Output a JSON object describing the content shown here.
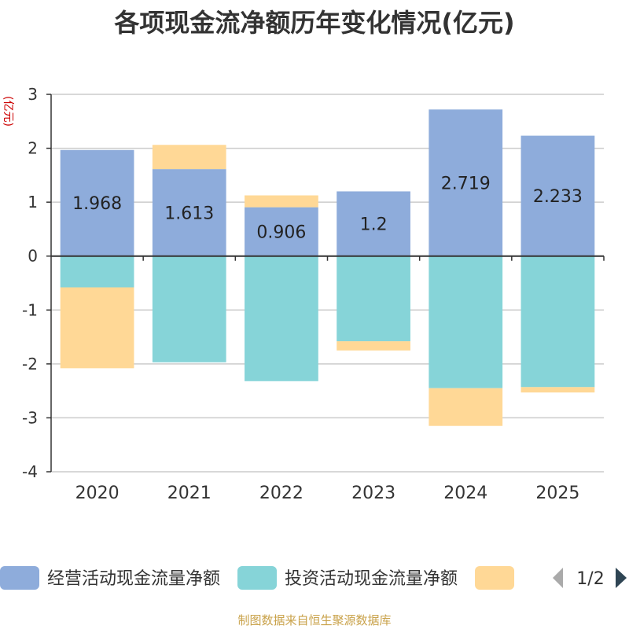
{
  "chart_data": {
    "type": "bar",
    "stacked": true,
    "title": "各项现金流净额历年变化情况(亿元)",
    "ylabel": "(亿元)",
    "xlabel": "",
    "ylim": [
      -4,
      3
    ],
    "yticks": [
      3,
      2,
      1,
      0,
      -1,
      -2,
      -3,
      -4
    ],
    "categories": [
      "2020",
      "2021",
      "2022",
      "2023",
      "2024",
      "2025"
    ],
    "series": [
      {
        "name": "经营活动现金流量净额",
        "color": "#8eacdb",
        "values": [
          1.968,
          1.613,
          0.906,
          1.2,
          2.719,
          2.233
        ],
        "labels": [
          "1.968",
          "1.613",
          "0.906",
          "1.2",
          "2.719",
          "2.233"
        ]
      },
      {
        "name": "投资活动现金流量净额",
        "color": "#86d4d8",
        "values": [
          -0.58,
          -1.97,
          -2.32,
          -1.58,
          -2.45,
          -2.43
        ]
      },
      {
        "name": "",
        "color": "#ffd896",
        "values": [
          -1.5,
          0.45,
          0.22,
          -0.17,
          -0.7,
          -0.1
        ]
      }
    ],
    "legend": {
      "position": "bottom",
      "page": "1/2"
    }
  },
  "source": "制图数据来自恒生聚源数据库",
  "colors": {
    "axis": "#333333",
    "grid": "#cccccc",
    "ylabel": "#cc0000",
    "pager_active": "#2f4554",
    "pager_inactive": "#aaaaaa"
  }
}
